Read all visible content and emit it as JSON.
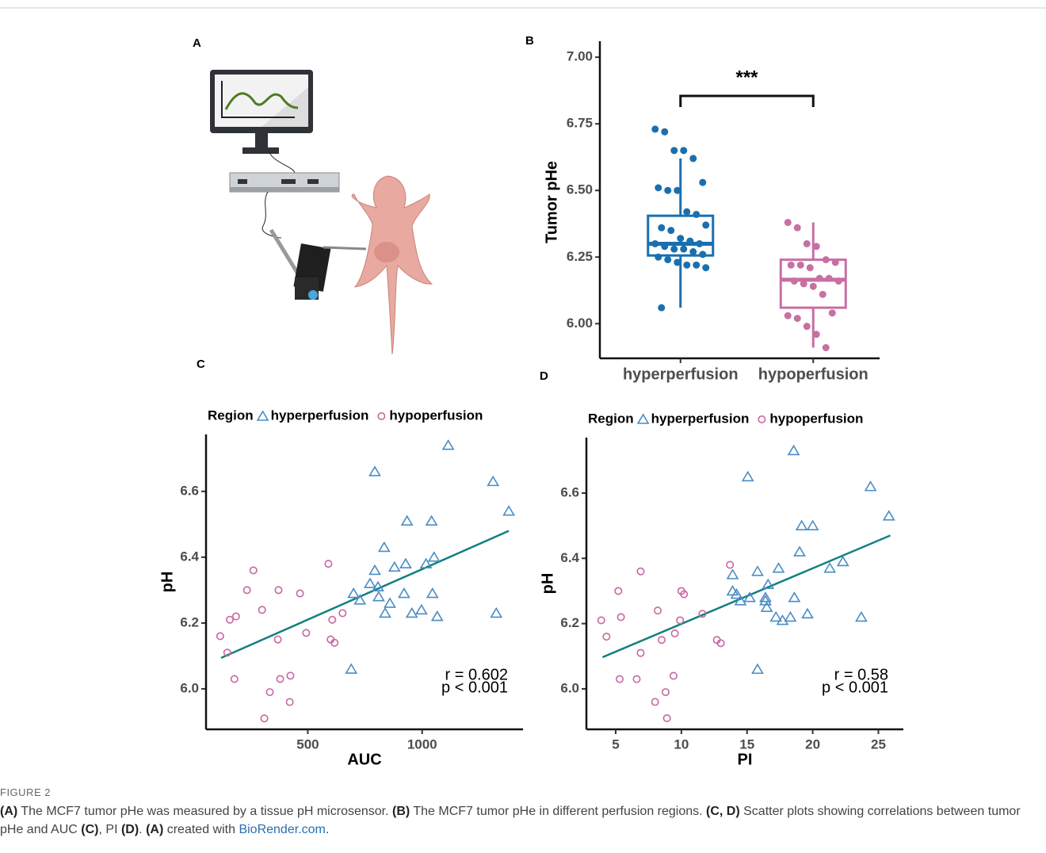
{
  "figure": {
    "panel_labels": [
      "A",
      "B",
      "C",
      "D"
    ],
    "label": "FIGURE 2",
    "caption": [
      {
        "text": "(A)",
        "bold": true
      },
      {
        "text": " The MCF7 tumor pHe was measured by a tissue pH microsensor. "
      },
      {
        "text": "(B)",
        "bold": true
      },
      {
        "text": " The MCF7 tumor pHe in different perfusion regions. "
      },
      {
        "text": "(C, D)",
        "bold": true
      },
      {
        "text": " Scatter plots showing correlations between tumor pHe and AUC "
      },
      {
        "text": "(C)",
        "bold": true
      },
      {
        "text": ", PI "
      },
      {
        "text": "(D)",
        "bold": true
      },
      {
        "text": ". "
      },
      {
        "text": "(A)",
        "bold": true
      },
      {
        "text": " created with "
      },
      {
        "text": "BioRender.com",
        "link": true
      },
      {
        "text": "."
      }
    ]
  },
  "chart_data": [
    {
      "type": "box",
      "ylabel": "Tumor pHe",
      "categories": [
        "hyperperfusion",
        "hypoperfusion"
      ],
      "colors": [
        "#1a6faf",
        "#c86fa3"
      ],
      "annotation": "***",
      "ylim": [
        5.87,
        7.06
      ],
      "yticks": [
        {
          "value": 6,
          "label": "6.00"
        },
        6.25,
        {
          "value": 6.5,
          "label": "6.50"
        },
        6.75,
        {
          "value": 7,
          "label": "7.00"
        }
      ],
      "boxes": [
        {
          "whisker_low": 6.06,
          "q1": 6.256,
          "median": 6.3,
          "q3": 6.405,
          "whisker_high": 6.62,
          "points": [
            6.73,
            6.72,
            6.65,
            6.65,
            6.62,
            6.53,
            6.51,
            6.5,
            6.5,
            6.42,
            6.41,
            6.37,
            6.36,
            6.35,
            6.32,
            6.31,
            6.3,
            6.3,
            6.29,
            6.28,
            6.28,
            6.27,
            6.26,
            6.25,
            6.24,
            6.23,
            6.22,
            6.22,
            6.21,
            6.06
          ]
        },
        {
          "whisker_low": 5.91,
          "q1": 6.06,
          "median": 6.165,
          "q3": 6.24,
          "whisker_high": 6.38,
          "points": [
            6.38,
            6.36,
            6.3,
            6.29,
            6.24,
            6.23,
            6.22,
            6.22,
            6.21,
            6.17,
            6.17,
            6.16,
            6.16,
            6.15,
            6.14,
            6.11,
            6.04,
            6.03,
            6.02,
            5.99,
            5.96,
            5.91
          ]
        }
      ]
    },
    {
      "type": "scatter",
      "xlabel": "AUC",
      "ylabel": "pH",
      "legend_title": "Region",
      "xlim": [
        55,
        1441
      ],
      "ylim": [
        5.877,
        6.773
      ],
      "xticks": [
        500,
        1000
      ],
      "yticks": [
        {
          "value": 6,
          "label": "6.0"
        },
        6.2,
        6.4,
        6.6
      ],
      "annotations": [
        "r = 0.602",
        "p < 0.001"
      ],
      "fit": {
        "color": "#138080",
        "x": [
          121,
          1379
        ],
        "y": [
          6.094,
          6.48
        ]
      },
      "series": [
        {
          "name": "hyperperfusion",
          "color": "#4a8cc4",
          "marker": "triangle",
          "x": [
            793,
            1114,
            1310,
            1379,
            934,
            1041,
            834,
            1052,
            1017,
            928,
            879,
            793,
            772,
            807,
            700,
            921,
            1045,
            728,
            810,
            859,
            997,
            955,
            838,
            1066,
            1324,
            690
          ],
          "y": [
            6.66,
            6.74,
            6.63,
            6.54,
            6.51,
            6.51,
            6.43,
            6.4,
            6.38,
            6.38,
            6.37,
            6.36,
            6.32,
            6.31,
            6.29,
            6.29,
            6.29,
            6.27,
            6.28,
            6.26,
            6.24,
            6.23,
            6.23,
            6.22,
            6.23,
            6.06
          ]
        },
        {
          "name": "hypoperfusion",
          "color": "#c866a0",
          "marker": "circle",
          "x": [
            590,
            262,
            234,
            372,
            466,
            652,
            300,
            186,
            159,
            607,
            117,
            369,
            493,
            600,
            617,
            148,
            179,
            379,
            424,
            334,
            421,
            310
          ],
          "y": [
            6.38,
            6.36,
            6.3,
            6.3,
            6.29,
            6.23,
            6.24,
            6.22,
            6.21,
            6.21,
            6.16,
            6.15,
            6.17,
            6.15,
            6.14,
            6.11,
            6.03,
            6.03,
            6.04,
            5.99,
            5.96,
            5.91
          ]
        }
      ]
    },
    {
      "type": "scatter",
      "xlabel": "PI",
      "ylabel": "pH",
      "legend_title": "Region",
      "xlim": [
        2.77,
        26.9
      ],
      "ylim": [
        5.876,
        6.77
      ],
      "xticks": [
        5,
        10,
        15,
        20,
        25
      ],
      "yticks": [
        {
          "value": 6,
          "label": "6.0"
        },
        6.2,
        6.4,
        6.6
      ],
      "annotations": [
        "r = 0.58",
        "p < 0.001"
      ],
      "fit": {
        "color": "#138080",
        "x": [
          4,
          25.9
        ],
        "y": [
          6.097,
          6.47
        ]
      },
      "series": [
        {
          "name": "hyperperfusion",
          "color": "#4a8cc4",
          "marker": "triangle",
          "x": [
            18.55,
            15.06,
            24.4,
            25.8,
            19.16,
            20,
            19,
            22.3,
            21.3,
            17.4,
            13.9,
            15.8,
            16.6,
            13.9,
            14.2,
            15.2,
            16.4,
            18.6,
            14.5,
            16.4,
            16.5,
            19.6,
            17.2,
            18.3,
            17.7,
            23.7,
            15.8
          ],
          "y": [
            6.73,
            6.65,
            6.62,
            6.53,
            6.5,
            6.5,
            6.42,
            6.39,
            6.37,
            6.37,
            6.35,
            6.36,
            6.32,
            6.3,
            6.29,
            6.28,
            6.28,
            6.28,
            6.27,
            6.27,
            6.25,
            6.23,
            6.22,
            6.22,
            6.21,
            6.22,
            6.06
          ]
        },
        {
          "name": "hypoperfusion",
          "color": "#c866a0",
          "marker": "circle",
          "x": [
            13.7,
            6.9,
            5.2,
            10,
            10.2,
            11.6,
            8.2,
            5.4,
            3.9,
            9.9,
            4.3,
            8.5,
            9.5,
            12.7,
            13,
            6.9,
            5.3,
            6.6,
            9.4,
            8.8,
            8,
            8.9
          ],
          "y": [
            6.38,
            6.36,
            6.3,
            6.3,
            6.29,
            6.23,
            6.24,
            6.22,
            6.21,
            6.21,
            6.16,
            6.15,
            6.17,
            6.15,
            6.14,
            6.11,
            6.03,
            6.03,
            6.04,
            5.99,
            5.96,
            5.91
          ]
        }
      ]
    }
  ]
}
